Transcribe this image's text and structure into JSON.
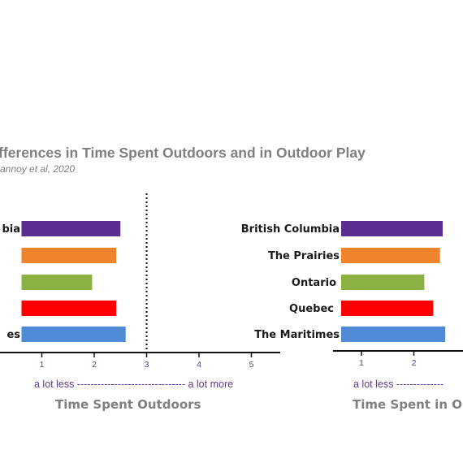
{
  "slide": {
    "title": "fferences in Time Spent Outdoors and in Outdoor Play",
    "subtitle": "annoy et al, 2020"
  },
  "chart_data": [
    {
      "type": "bar",
      "orientation": "horizontal",
      "categories": [
        "bia",
        "",
        "",
        "",
        "es"
      ],
      "values": [
        2.5,
        2.42,
        1.96,
        2.42,
        2.6
      ],
      "colors": [
        "#5a2d91",
        "#f0842c",
        "#8ab142",
        "#ff0000",
        "#4f8ad6"
      ],
      "xlabel": "Time Spent Outdoors",
      "scale_label": "a lot less -------------------------------- a lot more",
      "xticks": [
        1,
        2,
        3,
        4,
        5
      ],
      "xlim": [
        0.55,
        5.6
      ],
      "reference_line": 3
    },
    {
      "type": "bar",
      "orientation": "horizontal",
      "categories": [
        "British Columbia",
        "The Prairies",
        "Ontario",
        "Quebec",
        "The Maritimes"
      ],
      "values": [
        2.55,
        2.5,
        2.2,
        2.37,
        2.6
      ],
      "colors": [
        "#5a2d91",
        "#f0842c",
        "#8ab142",
        "#ff0000",
        "#4f8ad6"
      ],
      "xlabel": "Time Spent in Out",
      "scale_label": "a lot less --------------",
      "xticks": [
        1,
        2
      ],
      "xlim": [
        0.55,
        5.6
      ]
    }
  ]
}
